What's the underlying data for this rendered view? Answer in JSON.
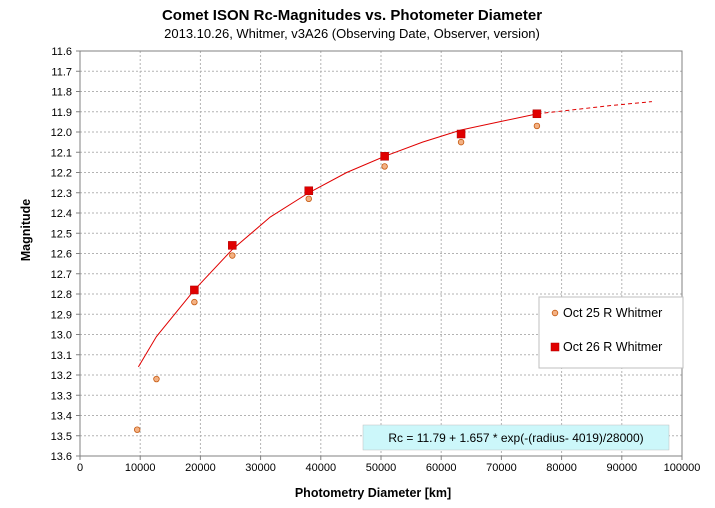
{
  "chart_data": {
    "type": "scatter",
    "title": "Comet ISON Rc-Magnitudes  vs. Photometer Diameter",
    "subtitle": "2013.10.26,  Whitmer, v3A26 (Observing Date, Observer, version)",
    "xlabel": "Photometry Diameter  [km]",
    "ylabel": "Magnitude",
    "xlim": [
      0,
      100000
    ],
    "ylim": [
      11.6,
      13.6
    ],
    "y_inverted": true,
    "x_ticks": [
      "0",
      "10000",
      "20000",
      "30000",
      "40000",
      "50000",
      "60000",
      "70000",
      "80000",
      "90000",
      "100000"
    ],
    "y_ticks": [
      "11.6",
      "11.7",
      "11.8",
      "11.9",
      "12.0",
      "12.1",
      "12.2",
      "12.3",
      "12.4",
      "12.5",
      "12.6",
      "12.7",
      "12.8",
      "12.9",
      "13.0",
      "13.1",
      "13.2",
      "13.3",
      "13.4",
      "13.5",
      "13.6"
    ],
    "grid": true,
    "legend_position": "right",
    "series": [
      {
        "name": "Oct 25 R Whitmer",
        "marker": "circle",
        "color": "#F4B183",
        "edge_color": "#C55A11",
        "x": [
          9500,
          12700,
          19000,
          25300,
          38000,
          50600,
          63300,
          75900
        ],
        "y": [
          13.47,
          13.22,
          12.84,
          12.61,
          12.33,
          12.17,
          12.05,
          11.97
        ]
      },
      {
        "name": "Oct 26 R Whitmer",
        "marker": "square",
        "color": "#E00000",
        "x": [
          19000,
          25300,
          38000,
          50600,
          63300,
          75900
        ],
        "y": [
          12.78,
          12.56,
          12.29,
          12.12,
          12.01,
          11.91
        ]
      }
    ],
    "fit": {
      "color": "#E00000",
      "solid_x": [
        9700,
        12700,
        19000,
        25300,
        31600,
        38000,
        44300,
        50600,
        56900,
        63300,
        69600,
        76000
      ],
      "solid_y": [
        13.16,
        13.01,
        12.78,
        12.58,
        12.42,
        12.3,
        12.2,
        12.12,
        12.05,
        11.99,
        11.95,
        11.91
      ],
      "dashed_x": [
        76000,
        82000,
        88000,
        95000
      ],
      "dashed_y": [
        11.91,
        11.89,
        11.87,
        11.85
      ]
    },
    "annotation": "Rc = 11.79 + 1.657 * exp(-(radius- 4019)/28000)",
    "annotation_bg": "#CCF7FA"
  }
}
